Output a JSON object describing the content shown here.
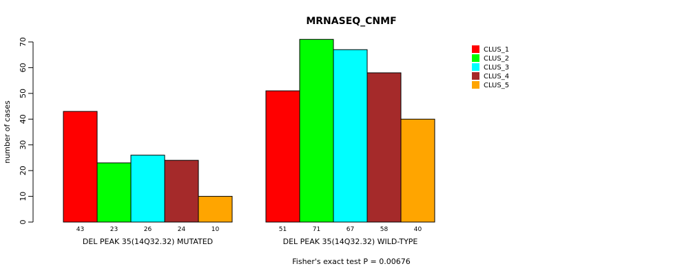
{
  "chart_data": {
    "type": "bar",
    "title": "MRNASEQ_CNMF",
    "xlabel": "",
    "ylabel": "number of cases",
    "ylim": [
      0,
      70
    ],
    "yticks": [
      0,
      10,
      20,
      30,
      40,
      50,
      60,
      70
    ],
    "groups": [
      "DEL PEAK 35(14Q32.32) MUTATED",
      "DEL PEAK 35(14Q32.32) WILD-TYPE"
    ],
    "series": [
      {
        "name": "CLUS_1",
        "color": "#ff0000",
        "values": [
          43,
          51
        ]
      },
      {
        "name": "CLUS_2",
        "color": "#00ff00",
        "values": [
          23,
          71
        ]
      },
      {
        "name": "CLUS_3",
        "color": "#00ffff",
        "values": [
          26,
          67
        ]
      },
      {
        "name": "CLUS_4",
        "color": "#a52a2a",
        "values": [
          24,
          58
        ]
      },
      {
        "name": "CLUS_5",
        "color": "#ffa500",
        "values": [
          10,
          40
        ]
      }
    ],
    "legend_position": "top-right",
    "grid": false,
    "footnote": "Fisher's exact test P = 0.00676"
  }
}
